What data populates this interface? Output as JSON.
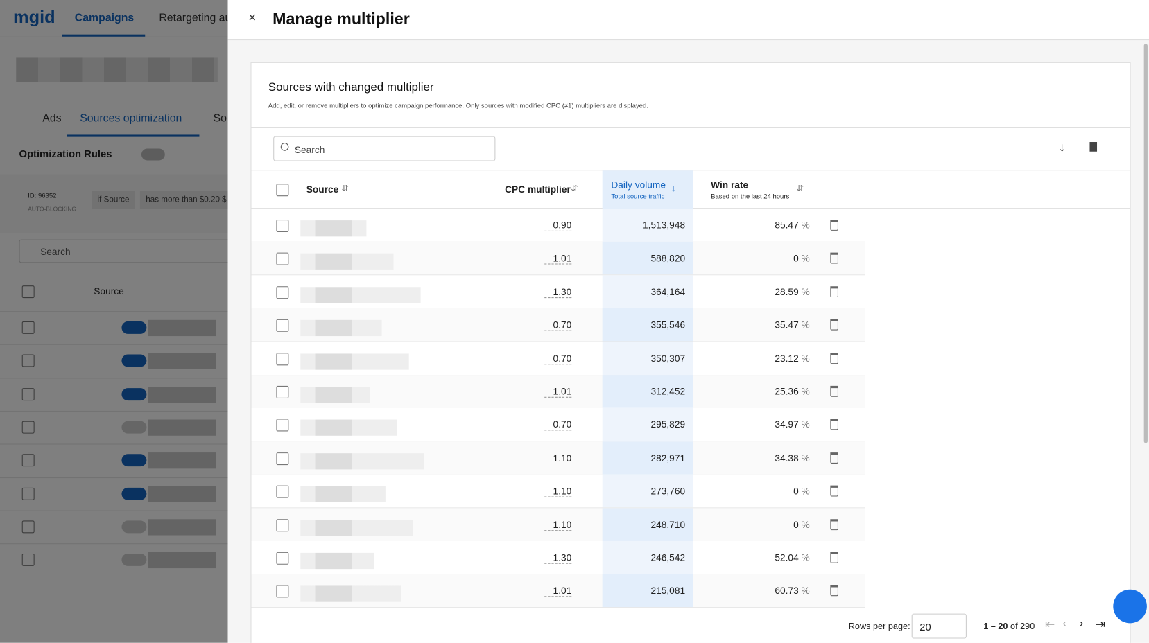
{
  "background": {
    "logo": "mgid",
    "nav": [
      "Campaigns",
      "Retargeting au"
    ],
    "tabs": [
      "Ads",
      "Sources optimization",
      "So"
    ],
    "rules_label": "Optimization Rules",
    "rule_id": "ID: 96352",
    "rule_type": "AUTO-BLOCKING",
    "rule_chips": [
      "if Source",
      "has more than $0.20 $"
    ],
    "search": "Search",
    "source_header": "Source"
  },
  "modal": {
    "title": "Manage multiplier",
    "card_title": "Sources with changed multiplier",
    "card_desc": "Add, edit, or remove multipliers to optimize campaign performance. Only sources with modified CPC (≠1) multipliers are displayed.",
    "search": "Search",
    "table": {
      "headers": {
        "source": "Source",
        "cpc": "CPC multiplier",
        "volume": "Daily volume",
        "volume_sub": "Total source traffic",
        "win": "Win rate",
        "win_sub": "Based on the last 24 hours"
      },
      "win_unit": "%",
      "rows": [
        [
          "0.90",
          "1,513,948",
          "85.47"
        ],
        [
          "1.01",
          "588,820",
          "0"
        ],
        [
          "1.30",
          "364,164",
          "28.59"
        ],
        [
          "0.70",
          "355,546",
          "35.47"
        ],
        [
          "0.70",
          "350,307",
          "23.12"
        ],
        [
          "1.01",
          "312,452",
          "25.36"
        ],
        [
          "0.70",
          "295,829",
          "34.97"
        ],
        [
          "1.10",
          "282,971",
          "34.38"
        ],
        [
          "1.10",
          "273,760",
          "0"
        ],
        [
          "1.10",
          "248,710",
          "0"
        ],
        [
          "1.30",
          "246,542",
          "52.04"
        ],
        [
          "1.01",
          "215,081",
          "60.73"
        ]
      ]
    },
    "pagination": {
      "rows_label": "Rows per page:",
      "rows_value": "20",
      "range": "1 – 20",
      "total": "of 290"
    }
  }
}
